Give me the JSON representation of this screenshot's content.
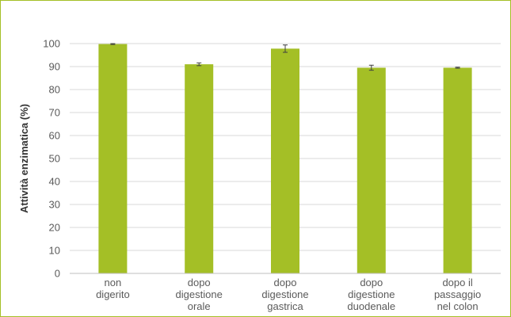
{
  "chart_data": {
    "type": "bar",
    "categories": [
      [
        "non",
        "digerito"
      ],
      [
        "dopo",
        "digestione",
        "orale"
      ],
      [
        "dopo",
        "digestione",
        "gastrica"
      ],
      [
        "dopo",
        "digestione",
        "duodenale"
      ],
      [
        "dopo il",
        "passaggio",
        "nel colon"
      ]
    ],
    "values": [
      99.8,
      91.0,
      97.8,
      89.5,
      89.5
    ],
    "error": [
      0.2,
      0.6,
      1.6,
      1.1,
      0.2
    ],
    "xlabel": "",
    "ylabel": "Attività enzimatica (%)",
    "ylim": [
      0,
      100
    ],
    "yticks": [
      0,
      10,
      20,
      30,
      40,
      50,
      60,
      70,
      80,
      90,
      100
    ],
    "grid": true,
    "bar_color": "#a4bf26",
    "frame_color": "#a4bf26",
    "gridline_color": "#d9d9d9",
    "errorbar_color": "#404040"
  }
}
